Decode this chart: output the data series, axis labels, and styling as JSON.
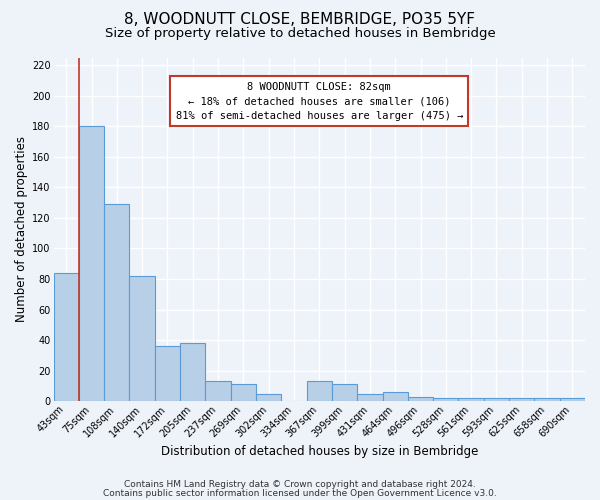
{
  "title": "8, WOODNUTT CLOSE, BEMBRIDGE, PO35 5YF",
  "subtitle": "Size of property relative to detached houses in Bembridge",
  "xlabel": "Distribution of detached houses by size in Bembridge",
  "ylabel": "Number of detached properties",
  "bin_labels": [
    "43sqm",
    "75sqm",
    "108sqm",
    "140sqm",
    "172sqm",
    "205sqm",
    "237sqm",
    "269sqm",
    "302sqm",
    "334sqm",
    "367sqm",
    "399sqm",
    "431sqm",
    "464sqm",
    "496sqm",
    "528sqm",
    "561sqm",
    "593sqm",
    "625sqm",
    "658sqm",
    "690sqm"
  ],
  "bar_heights": [
    84,
    180,
    129,
    82,
    36,
    38,
    13,
    11,
    5,
    0,
    13,
    11,
    5,
    6,
    3,
    2,
    2,
    2,
    2,
    2,
    2
  ],
  "bar_color": "#b8cfe8",
  "bar_edge_color": "#5b9bd5",
  "vline_x": 1.0,
  "vline_color": "#c0392b",
  "annotation_title": "8 WOODNUTT CLOSE: 82sqm",
  "annotation_line1": "← 18% of detached houses are smaller (106)",
  "annotation_line2": "81% of semi-detached houses are larger (475) →",
  "annotation_box_color": "#ffffff",
  "annotation_box_edge": "#c0392b",
  "ylim": [
    0,
    225
  ],
  "yticks": [
    0,
    20,
    40,
    60,
    80,
    100,
    120,
    140,
    160,
    180,
    200,
    220
  ],
  "footer1": "Contains HM Land Registry data © Crown copyright and database right 2024.",
  "footer2": "Contains public sector information licensed under the Open Government Licence v3.0.",
  "background_color": "#eef2f9",
  "grid_color": "#ffffff",
  "title_fontsize": 11,
  "subtitle_fontsize": 9.5,
  "axis_label_fontsize": 8.5,
  "tick_fontsize": 7,
  "footer_fontsize": 6.5
}
